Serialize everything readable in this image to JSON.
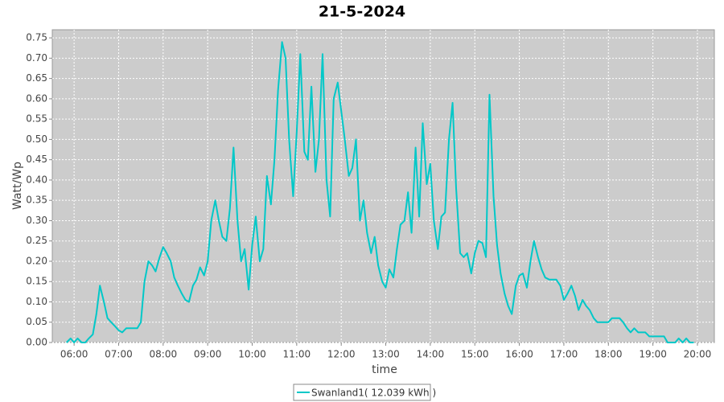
{
  "chart_data": {
    "type": "line",
    "title": "21-5-2024",
    "x_label": "time",
    "y_label": "Watt/Wp",
    "x": [
      5.83,
      5.92,
      6.0,
      6.08,
      6.17,
      6.25,
      6.33,
      6.42,
      6.5,
      6.58,
      6.67,
      6.75,
      6.83,
      6.92,
      7.0,
      7.08,
      7.17,
      7.25,
      7.33,
      7.42,
      7.5,
      7.58,
      7.67,
      7.75,
      7.83,
      7.92,
      8.0,
      8.08,
      8.17,
      8.25,
      8.33,
      8.42,
      8.5,
      8.58,
      8.67,
      8.75,
      8.83,
      8.92,
      9.0,
      9.08,
      9.17,
      9.25,
      9.33,
      9.42,
      9.5,
      9.58,
      9.67,
      9.75,
      9.83,
      9.92,
      10.0,
      10.08,
      10.17,
      10.25,
      10.33,
      10.42,
      10.5,
      10.58,
      10.67,
      10.75,
      10.83,
      10.92,
      11.0,
      11.08,
      11.17,
      11.25,
      11.33,
      11.42,
      11.5,
      11.58,
      11.67,
      11.75,
      11.83,
      11.92,
      12.0,
      12.08,
      12.17,
      12.25,
      12.33,
      12.42,
      12.5,
      12.58,
      12.67,
      12.75,
      12.83,
      12.92,
      13.0,
      13.08,
      13.17,
      13.25,
      13.33,
      13.42,
      13.5,
      13.58,
      13.67,
      13.75,
      13.83,
      13.92,
      14.0,
      14.08,
      14.17,
      14.25,
      14.33,
      14.42,
      14.5,
      14.58,
      14.67,
      14.75,
      14.83,
      14.92,
      15.0,
      15.08,
      15.17,
      15.25,
      15.33,
      15.42,
      15.5,
      15.58,
      15.67,
      15.75,
      15.83,
      15.92,
      16.0,
      16.08,
      16.17,
      16.25,
      16.33,
      16.42,
      16.5,
      16.58,
      16.67,
      16.75,
      16.83,
      16.92,
      17.0,
      17.08,
      17.17,
      17.25,
      17.33,
      17.42,
      17.5,
      17.58,
      17.67,
      17.75,
      17.83,
      17.92,
      18.0,
      18.08,
      18.17,
      18.25,
      18.33,
      18.42,
      18.5,
      18.58,
      18.67,
      18.75,
      18.83,
      18.92,
      19.0,
      19.08,
      19.17,
      19.25,
      19.33,
      19.42,
      19.5,
      19.58,
      19.67,
      19.75,
      19.83,
      19.92
    ],
    "series": [
      {
        "name": "Swanland1( 12.039 kWh )",
        "color": "#00c8c8",
        "values": [
          0,
          0.01,
          0,
          0.01,
          0,
          0,
          0.01,
          0.02,
          0.07,
          0.14,
          0.1,
          0.06,
          0.05,
          0.04,
          0.03,
          0.025,
          0.035,
          0.035,
          0.035,
          0.035,
          0.05,
          0.15,
          0.2,
          0.19,
          0.175,
          0.21,
          0.235,
          0.22,
          0.2,
          0.16,
          0.14,
          0.12,
          0.105,
          0.1,
          0.14,
          0.155,
          0.185,
          0.165,
          0.2,
          0.3,
          0.35,
          0.3,
          0.26,
          0.25,
          0.33,
          0.48,
          0.3,
          0.2,
          0.23,
          0.13,
          0.24,
          0.31,
          0.2,
          0.23,
          0.41,
          0.34,
          0.45,
          0.62,
          0.74,
          0.7,
          0.5,
          0.36,
          0.52,
          0.71,
          0.47,
          0.45,
          0.63,
          0.42,
          0.5,
          0.71,
          0.4,
          0.31,
          0.6,
          0.64,
          0.57,
          0.5,
          0.41,
          0.43,
          0.5,
          0.3,
          0.35,
          0.27,
          0.22,
          0.26,
          0.19,
          0.15,
          0.135,
          0.18,
          0.16,
          0.23,
          0.29,
          0.3,
          0.37,
          0.27,
          0.48,
          0.31,
          0.54,
          0.39,
          0.44,
          0.3,
          0.23,
          0.31,
          0.32,
          0.5,
          0.59,
          0.38,
          0.22,
          0.21,
          0.22,
          0.17,
          0.22,
          0.25,
          0.245,
          0.21,
          0.61,
          0.36,
          0.24,
          0.17,
          0.12,
          0.09,
          0.07,
          0.14,
          0.165,
          0.17,
          0.135,
          0.2,
          0.25,
          0.21,
          0.18,
          0.16,
          0.155,
          0.155,
          0.155,
          0.14,
          0.105,
          0.12,
          0.14,
          0.115,
          0.08,
          0.105,
          0.09,
          0.08,
          0.06,
          0.05,
          0.05,
          0.05,
          0.05,
          0.06,
          0.06,
          0.06,
          0.05,
          0.035,
          0.025,
          0.035,
          0.025,
          0.025,
          0.025,
          0.015,
          0.015,
          0.015,
          0.015,
          0.015,
          0,
          0,
          0,
          0.01,
          0,
          0.01,
          0,
          0
        ]
      }
    ],
    "xlim": [
      5.51,
      20.38
    ],
    "xticks": [
      {
        "value": 6,
        "label": "06:00"
      },
      {
        "value": 7,
        "label": "07:00"
      },
      {
        "value": 8,
        "label": "08:00"
      },
      {
        "value": 9,
        "label": "09:00"
      },
      {
        "value": 10,
        "label": "10:00"
      },
      {
        "value": 11,
        "label": "11:00"
      },
      {
        "value": 12,
        "label": "12:00"
      },
      {
        "value": 13,
        "label": "13:00"
      },
      {
        "value": 14,
        "label": "14:00"
      },
      {
        "value": 15,
        "label": "15:00"
      },
      {
        "value": 16,
        "label": "16:00"
      },
      {
        "value": 17,
        "label": "17:00"
      },
      {
        "value": 18,
        "label": "18:00"
      },
      {
        "value": 19,
        "label": "19:00"
      },
      {
        "value": 20,
        "label": "20:00"
      }
    ],
    "ylim": [
      0,
      0.77
    ],
    "yticks": [
      {
        "value": 0,
        "label": "0.00"
      },
      0.05,
      {
        "value": 0.1,
        "label": "0.10"
      },
      0.15,
      {
        "value": 0.2,
        "label": "0.20"
      },
      0.25,
      {
        "value": 0.3,
        "label": "0.30"
      },
      0.35,
      {
        "value": 0.4,
        "label": "0.40"
      },
      0.45,
      {
        "value": 0.5,
        "label": "0.50"
      },
      0.55,
      {
        "value": 0.6,
        "label": "0.60"
      },
      0.65,
      {
        "value": 0.7,
        "label": "0.70"
      },
      0.75
    ],
    "grid": true
  }
}
